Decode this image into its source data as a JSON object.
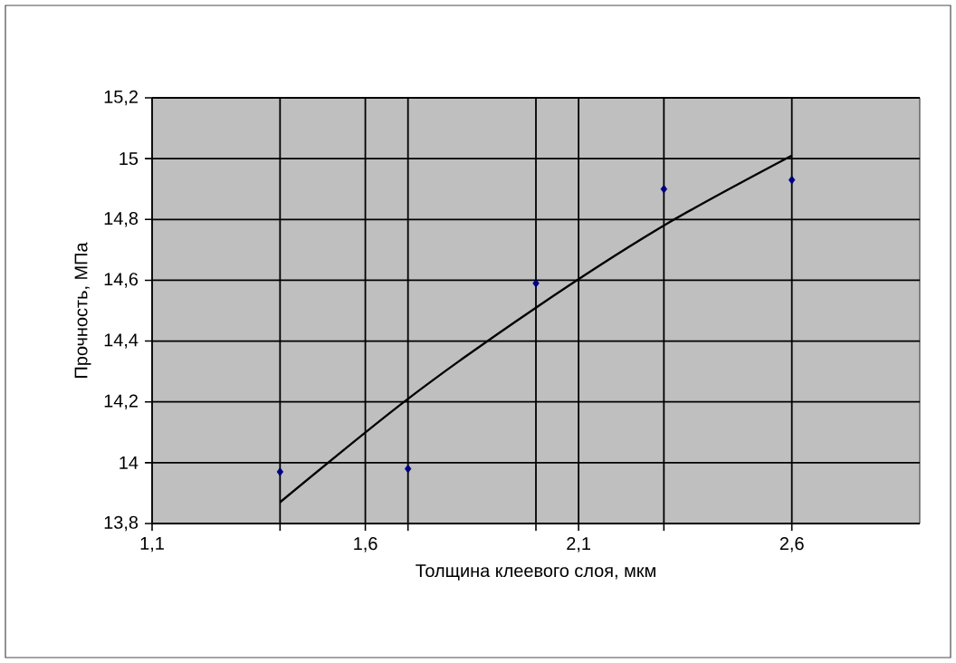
{
  "chart_data": {
    "type": "scatter",
    "xlabel": "Толщина клеевого слоя, мкм",
    "ylabel": "Прочность, МПа",
    "xlim": [
      1.1,
      2.9
    ],
    "ylim": [
      13.8,
      15.2
    ],
    "xticks": [
      {
        "value": 1.1,
        "label": "1,1"
      },
      {
        "value": 1.4,
        "label": null
      },
      {
        "value": 1.6,
        "label": "1,6"
      },
      {
        "value": 1.7,
        "label": null
      },
      {
        "value": 2.0,
        "label": null
      },
      {
        "value": 2.1,
        "label": "2,1"
      },
      {
        "value": 2.3,
        "label": null
      },
      {
        "value": 2.6,
        "label": "2,6"
      }
    ],
    "yticks": [
      {
        "value": 13.8,
        "label": "13,8"
      },
      14,
      {
        "value": 14.2,
        "label": "14,2"
      },
      {
        "value": 14.4,
        "label": "14,4"
      },
      {
        "value": 14.6,
        "label": "14,6"
      },
      {
        "value": 14.8,
        "label": "14,8"
      },
      15,
      {
        "value": 15.2,
        "label": "15,2"
      }
    ],
    "grid": true,
    "marker": "diamond",
    "series": [
      {
        "color": "#000080",
        "x": [
          1.4,
          1.7,
          2.0,
          2.3,
          2.6
        ],
        "values": [
          13.97,
          13.98,
          14.59,
          14.9,
          14.93
        ]
      },
      {
        "type": "line",
        "color": "#000000",
        "marker": "none",
        "x": [
          1.4,
          1.7,
          2.0,
          2.3,
          2.6
        ],
        "values": [
          13.87,
          14.21,
          14.51,
          14.78,
          15.01
        ]
      }
    ]
  }
}
